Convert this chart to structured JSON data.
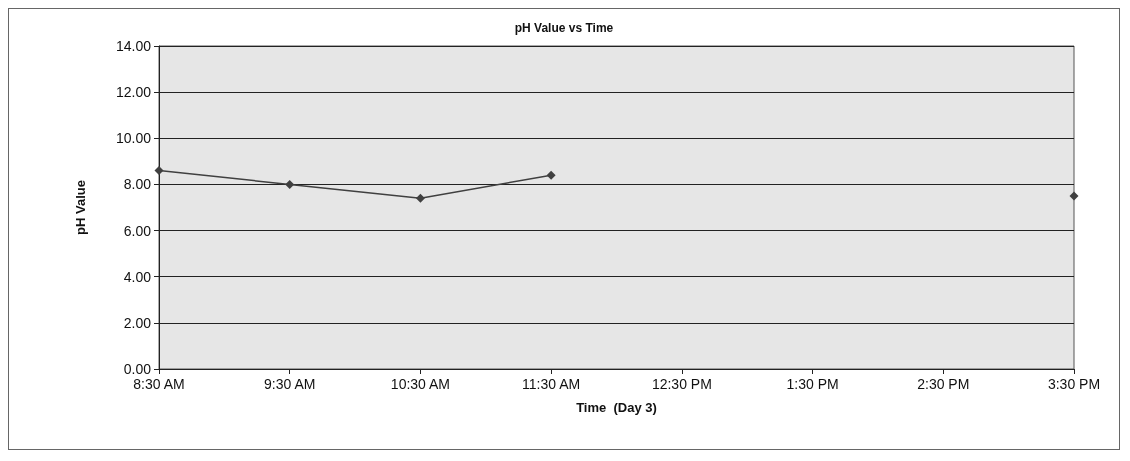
{
  "chart_data": {
    "type": "line",
    "title": "pH Value vs Time",
    "xlabel": "Time  (Day 3)",
    "ylabel": "pH Value",
    "categories": [
      "8:30 AM",
      "9:30 AM",
      "10:30 AM",
      "11:30 AM",
      "12:30 PM",
      "1:30 PM",
      "2:30 PM",
      "3:30 PM"
    ],
    "series": [
      {
        "color": "#404040",
        "values": [
          8.6,
          8.0,
          7.4,
          8.4,
          null,
          null,
          null,
          7.5
        ]
      }
    ],
    "ylim": [
      0,
      14
    ],
    "yticks": [
      {
        "value": 0,
        "label": "0.00"
      },
      {
        "value": 2,
        "label": "2.00"
      },
      {
        "value": 4,
        "label": "4.00"
      },
      {
        "value": 6,
        "label": "6.00"
      },
      {
        "value": 8,
        "label": "8.00"
      },
      {
        "value": 10,
        "label": "10.00"
      },
      {
        "value": 12,
        "label": "12.00"
      },
      {
        "value": 14,
        "label": "14.00"
      }
    ],
    "grid": "y",
    "marker": "diamond"
  }
}
